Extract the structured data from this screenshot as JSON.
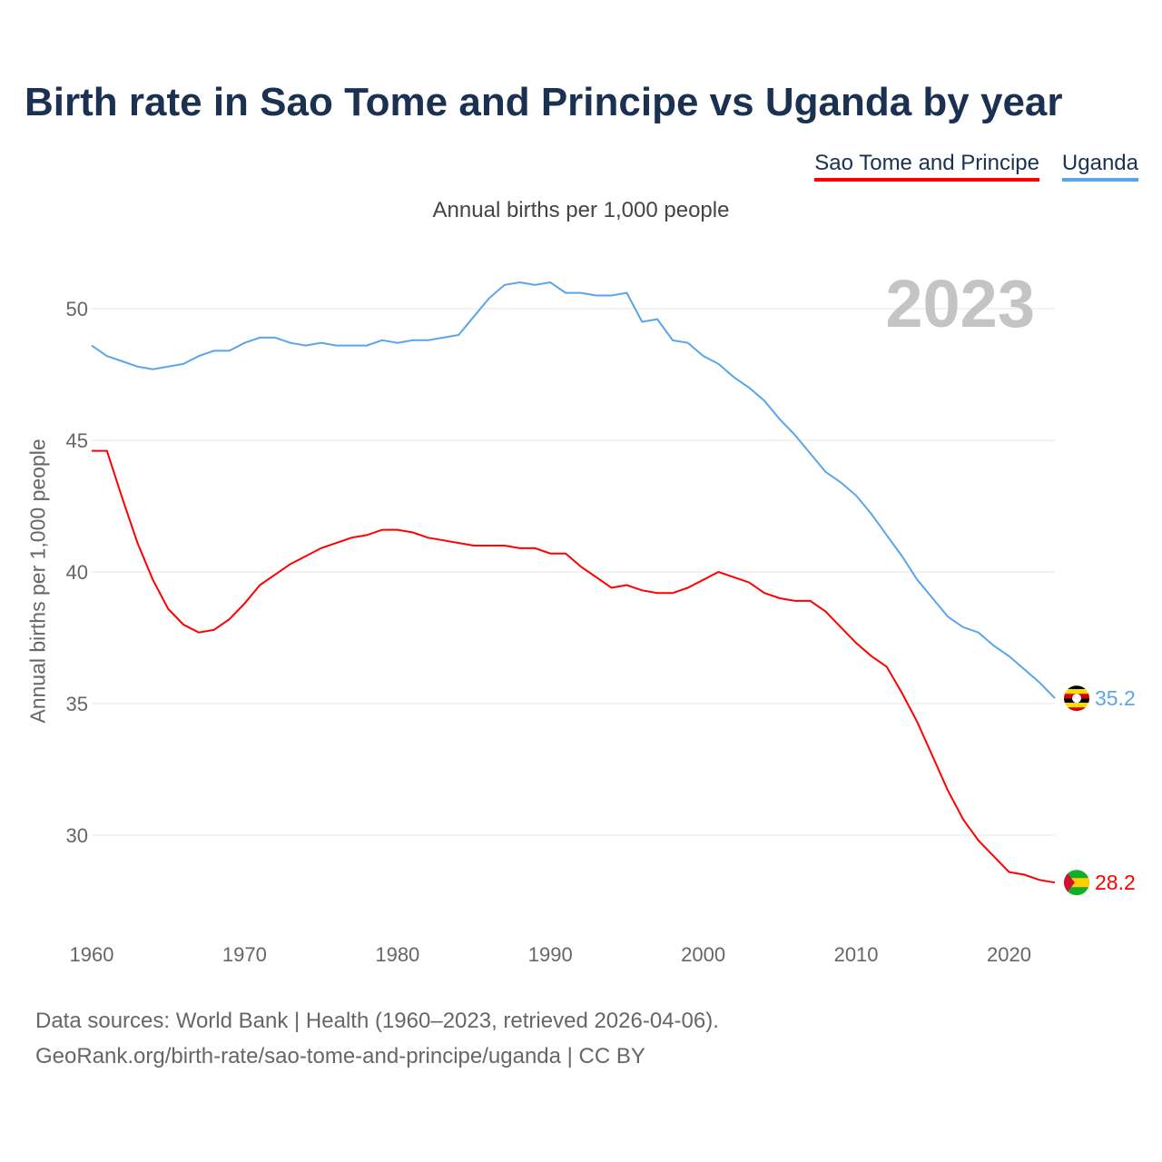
{
  "title": "Birth rate in Sao Tome and Principe vs Uganda by year",
  "legend": [
    "Sao Tome and Principe",
    "Uganda"
  ],
  "subtitle": "Annual births per 1,000 people",
  "footer": {
    "line1": "Data sources: World Bank | Health (1960–2023, retrieved 2026-04-06).",
    "line2": "GeoRank.org/birth-rate/sao-tome-and-principe/uganda | CC BY"
  },
  "chart_data": {
    "type": "line",
    "title": "Birth rate in Sao Tome and Principe vs Uganda by year",
    "ylabel": "Annual births per 1,000 people",
    "xlabel": "",
    "year_watermark": "2023",
    "xlim": [
      1960,
      2023
    ],
    "ylim": [
      27,
      52.5
    ],
    "xticks": [
      1960,
      1970,
      1980,
      1990,
      2000,
      2010,
      2020
    ],
    "yticks": [
      30,
      35,
      40,
      45,
      50
    ],
    "grid": true,
    "legend_position": "top-right",
    "x": [
      1960,
      1961,
      1962,
      1963,
      1964,
      1965,
      1966,
      1967,
      1968,
      1969,
      1970,
      1971,
      1972,
      1973,
      1974,
      1975,
      1976,
      1977,
      1978,
      1979,
      1980,
      1981,
      1982,
      1983,
      1984,
      1985,
      1986,
      1987,
      1988,
      1989,
      1990,
      1991,
      1992,
      1993,
      1994,
      1995,
      1996,
      1997,
      1998,
      1999,
      2000,
      2001,
      2002,
      2003,
      2004,
      2005,
      2006,
      2007,
      2008,
      2009,
      2010,
      2011,
      2012,
      2013,
      2014,
      2015,
      2016,
      2017,
      2018,
      2019,
      2020,
      2021,
      2022,
      2023
    ],
    "series": [
      {
        "name": "Sao Tome and Principe",
        "color": "#ff0000",
        "end_label": "28.2",
        "flag": "sao-tome-flag",
        "values": [
          44.6,
          44.6,
          42.8,
          41.1,
          39.7,
          38.6,
          38.0,
          37.7,
          37.8,
          38.2,
          38.8,
          39.5,
          39.9,
          40.3,
          40.6,
          40.9,
          41.1,
          41.3,
          41.4,
          41.6,
          41.6,
          41.5,
          41.3,
          41.2,
          41.1,
          41.0,
          41.0,
          41.0,
          40.9,
          40.9,
          40.7,
          40.7,
          40.2,
          39.8,
          39.4,
          39.5,
          39.3,
          39.2,
          39.2,
          39.4,
          39.7,
          40.0,
          39.8,
          39.6,
          39.2,
          39.0,
          38.9,
          38.9,
          38.5,
          37.9,
          37.3,
          36.8,
          36.4,
          35.4,
          34.3,
          33.0,
          31.7,
          30.6,
          29.8,
          29.2,
          28.6,
          28.5,
          28.3,
          28.2
        ]
      },
      {
        "name": "Uganda",
        "color": "#5aa5ea",
        "end_label": "35.2",
        "flag": "uganda-flag",
        "values": [
          48.6,
          48.2,
          48.0,
          47.8,
          47.7,
          47.8,
          47.9,
          48.2,
          48.4,
          48.4,
          48.7,
          48.9,
          48.9,
          48.7,
          48.6,
          48.7,
          48.6,
          48.6,
          48.6,
          48.8,
          48.7,
          48.8,
          48.8,
          48.9,
          49.0,
          49.7,
          50.4,
          50.9,
          51.0,
          50.9,
          51.0,
          50.6,
          50.6,
          50.5,
          50.5,
          50.6,
          49.5,
          49.6,
          48.8,
          48.7,
          48.2,
          47.9,
          47.4,
          47.0,
          46.5,
          45.8,
          45.2,
          44.5,
          43.8,
          43.4,
          42.9,
          42.2,
          41.4,
          40.6,
          39.7,
          39.0,
          38.3,
          37.9,
          37.7,
          37.2,
          36.8,
          36.3,
          35.8,
          35.2
        ]
      }
    ]
  }
}
